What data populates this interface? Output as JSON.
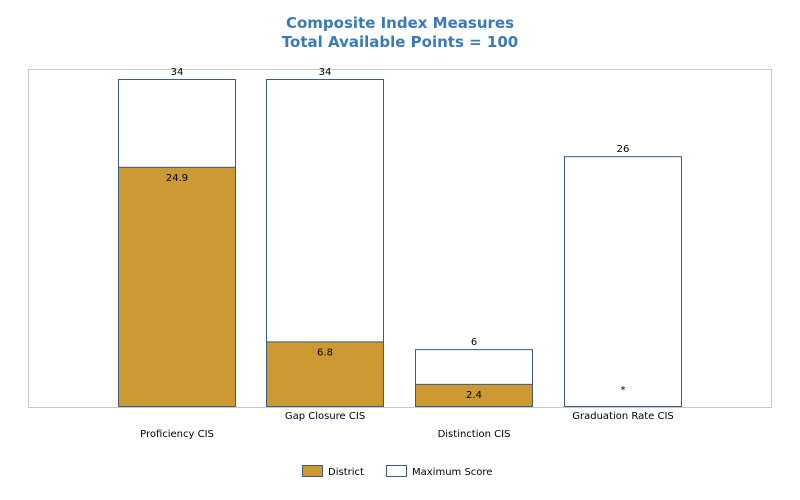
{
  "chart_data": {
    "type": "bar",
    "title": "Composite Index Measures",
    "subtitle": "Total Available Points = 100",
    "categories": [
      "Proficiency CIS",
      "Gap Closure CIS",
      "Distinction CIS",
      "Graduation Rate CIS"
    ],
    "series": [
      {
        "name": "District",
        "values": [
          24.9,
          6.8,
          2.4,
          null
        ],
        "labels": [
          "24.9",
          "6.8",
          "2.4",
          "*"
        ],
        "color": "#cc9933"
      },
      {
        "name": "Maximum Score",
        "values": [
          34,
          34,
          6,
          26
        ],
        "labels": [
          "34",
          "34",
          "6",
          "26"
        ],
        "color": "#ffffff",
        "stroke": "#3d5a80"
      }
    ],
    "ylim": [
      0,
      34
    ],
    "grid": false,
    "legend": "bottom-center",
    "xlabel": "",
    "ylabel": ""
  }
}
